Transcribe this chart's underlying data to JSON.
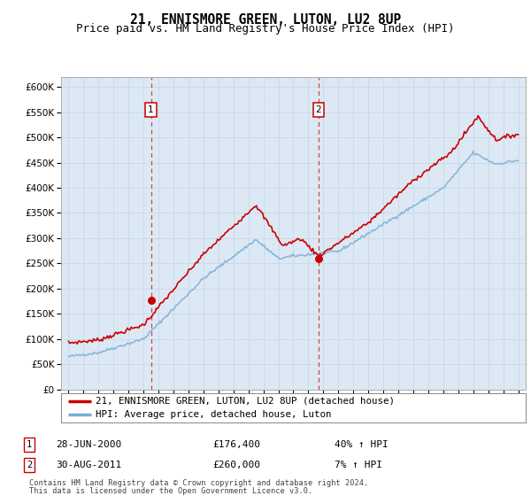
{
  "title": "21, ENNISMORE GREEN, LUTON, LU2 8UP",
  "subtitle": "Price paid vs. HM Land Registry's House Price Index (HPI)",
  "title_fontsize": 10.5,
  "subtitle_fontsize": 9,
  "background_color": "#ffffff",
  "plot_bg_color": "#dce9f5",
  "grid_color": "#c8d8e8",
  "ylim": [
    0,
    620000
  ],
  "yticks": [
    0,
    50000,
    100000,
    150000,
    200000,
    250000,
    300000,
    350000,
    400000,
    450000,
    500000,
    550000,
    600000
  ],
  "marker1_x": 2000.5,
  "marker1_price": 176400,
  "marker1_label": "1",
  "marker1_date": "28-JUN-2000",
  "marker1_price_str": "£176,400",
  "marker1_hpi": "40% ↑ HPI",
  "marker2_x": 2011.67,
  "marker2_price": 260000,
  "marker2_label": "2",
  "marker2_date": "30-AUG-2011",
  "marker2_price_str": "£260,000",
  "marker2_hpi": "7% ↑ HPI",
  "red_color": "#cc0000",
  "blue_color": "#7bafd4",
  "legend_label_red": "21, ENNISMORE GREEN, LUTON, LU2 8UP (detached house)",
  "legend_label_blue": "HPI: Average price, detached house, Luton",
  "footer1": "Contains HM Land Registry data © Crown copyright and database right 2024.",
  "footer2": "This data is licensed under the Open Government Licence v3.0."
}
